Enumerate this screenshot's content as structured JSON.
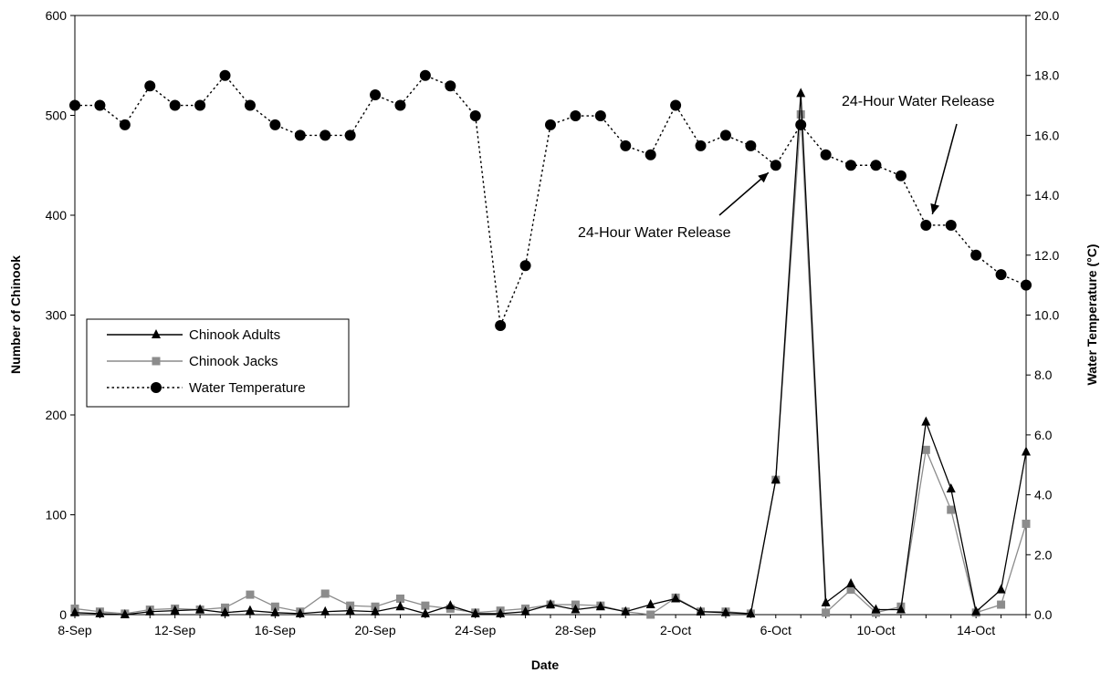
{
  "chart_data": {
    "type": "line",
    "xlabel": "Date",
    "ylabel": "Number of Chinook",
    "y2label": "Water Temperature (°C)",
    "ylim": [
      0,
      600
    ],
    "y2lim": [
      0,
      20
    ],
    "yticks": [
      "0",
      "100",
      "200",
      "300",
      "400",
      "500",
      "600"
    ],
    "y2ticks": [
      "0.0",
      "2.0",
      "4.0",
      "6.0",
      "8.0",
      "10.0",
      "12.0",
      "14.0",
      "16.0",
      "18.0",
      "20.0"
    ],
    "x": [
      "8-Sep",
      "9-Sep",
      "10-Sep",
      "11-Sep",
      "12-Sep",
      "13-Sep",
      "14-Sep",
      "15-Sep",
      "16-Sep",
      "17-Sep",
      "18-Sep",
      "19-Sep",
      "20-Sep",
      "21-Sep",
      "22-Sep",
      "23-Sep",
      "24-Sep",
      "25-Sep",
      "26-Sep",
      "27-Sep",
      "28-Sep",
      "29-Sep",
      "30-Sep",
      "1-Oct",
      "2-Oct",
      "3-Oct",
      "4-Oct",
      "5-Oct",
      "6-Oct",
      "7-Oct",
      "8-Oct",
      "9-Oct",
      "10-Oct",
      "11-Oct",
      "12-Oct",
      "13-Oct",
      "14-Oct",
      "15-Oct",
      "16-Oct"
    ],
    "xtick_labels": [
      "8-Sep",
      "12-Sep",
      "16-Sep",
      "20-Sep",
      "24-Sep",
      "28-Sep",
      "2-Oct",
      "6-Oct",
      "10-Oct",
      "14-Oct"
    ],
    "xtick_indices": [
      0,
      4,
      8,
      12,
      16,
      20,
      24,
      28,
      32,
      36
    ],
    "legend_position": "left-middle",
    "series": [
      {
        "name": "Chinook Adults",
        "axis": "left",
        "color": "#000000",
        "marker": "triangle",
        "dash": "solid",
        "values": [
          2,
          1,
          0,
          3,
          4,
          5,
          2,
          4,
          2,
          1,
          3,
          4,
          3,
          8,
          1,
          9,
          1,
          1,
          3,
          10,
          5,
          8,
          3,
          10,
          16,
          3,
          2,
          1,
          135,
          522,
          12,
          31,
          5,
          5,
          193,
          126,
          3,
          25,
          163
        ]
      },
      {
        "name": "Chinook Jacks",
        "axis": "left",
        "color": "#8c8c8c",
        "marker": "square",
        "dash": "solid",
        "values": [
          6,
          3,
          1,
          5,
          6,
          5,
          7,
          20,
          8,
          3,
          21,
          9,
          8,
          16,
          9,
          6,
          2,
          4,
          6,
          10,
          10,
          9,
          3,
          0,
          17,
          3,
          3,
          1,
          135,
          501,
          2,
          25,
          2,
          8,
          165,
          105,
          2,
          10,
          91
        ]
      },
      {
        "name": "Water Temperature",
        "axis": "right",
        "color": "#000000",
        "marker": "circle",
        "dash": "dotted",
        "values": [
          17.0,
          17.0,
          16.35,
          17.65,
          17.0,
          17.0,
          18.0,
          17.0,
          16.35,
          16.0,
          16.0,
          16.0,
          17.35,
          17.0,
          18.0,
          17.65,
          16.65,
          9.65,
          11.65,
          16.35,
          16.65,
          16.65,
          15.65,
          15.35,
          17.0,
          15.65,
          16.0,
          15.65,
          15.0,
          16.35,
          15.35,
          15.0,
          15.0,
          14.65,
          13.0,
          13.0,
          12.0,
          11.35,
          11.0
        ]
      }
    ],
    "annotations": [
      {
        "text": "24-Hour Water Release",
        "target_index": 28,
        "target_value": 15.0
      },
      {
        "text": "24-Hour Water Release",
        "target_index": 34,
        "target_value": 13.0
      }
    ]
  }
}
